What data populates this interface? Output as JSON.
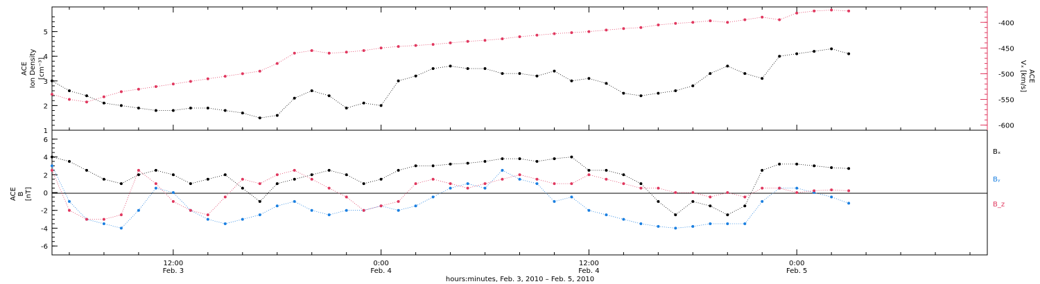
{
  "colors": {
    "density": "#000000",
    "vx": "#e0385f",
    "bx": "#000000",
    "by": "#1a7fe0",
    "bz": "#e0385f",
    "axis": "#000000"
  },
  "x_axis": {
    "title": "hours:minutes, Feb.  3, 2010 – Feb.  5, 2010",
    "tick_labels": [
      {
        "time": "12:00",
        "date": "Feb. 3",
        "hour": 12
      },
      {
        "time": "0:00",
        "date": "Feb. 4",
        "hour": 24
      },
      {
        "time": "12:00",
        "date": "Feb. 4",
        "hour": 36
      },
      {
        "time": "0:00",
        "date": "Feb. 5",
        "hour": 48
      }
    ]
  },
  "top_panel": {
    "left_label": [
      "ACE",
      "Ion Density",
      "[cm⁻³]"
    ],
    "right_label": [
      "ACE",
      "Vₓ [km/s]"
    ],
    "left_ticks": [
      "1",
      "2",
      "3",
      "4",
      "5"
    ],
    "right_ticks": [
      "-400",
      "-450",
      "-500",
      "-550",
      "-600"
    ]
  },
  "bottom_panel": {
    "left_label": [
      "ACE",
      "B",
      "[nT]"
    ],
    "left_ticks": [
      "6",
      "4",
      "2",
      "0",
      "-2",
      "-4",
      "-6"
    ],
    "legend": [
      "Bₓ",
      "Bᵧ",
      "B_z"
    ]
  },
  "chart_data": [
    {
      "type": "scatter",
      "panel": "top",
      "title": "",
      "x_unit": "hours from Feb. 3, 2010 0:00",
      "xlim": [
        5,
        59
      ],
      "y_left": {
        "label": "ACE Ion Density [cm⁻³]",
        "ylim": [
          1,
          6
        ]
      },
      "y_right": {
        "label": "ACE Vₓ [km/s]",
        "ylim": [
          -610,
          -370
        ]
      },
      "series": [
        {
          "name": "Ion Density",
          "axis": "left",
          "x": [
            5,
            6,
            7,
            8,
            9,
            10,
            11,
            12,
            13,
            14,
            15,
            16,
            17,
            18,
            19,
            20,
            21,
            22,
            23,
            24,
            25,
            26,
            27,
            28,
            29,
            30,
            31,
            32,
            33,
            34,
            35,
            36,
            37,
            38,
            39,
            40,
            41,
            42,
            43,
            44,
            45,
            46,
            47,
            48,
            49,
            50,
            51
          ],
          "y": [
            3.0,
            2.6,
            2.4,
            2.1,
            2.0,
            1.9,
            1.8,
            1.8,
            1.9,
            1.9,
            1.8,
            1.7,
            1.5,
            1.6,
            2.3,
            2.6,
            2.4,
            1.9,
            2.1,
            2.0,
            3.0,
            3.2,
            3.5,
            3.6,
            3.5,
            3.5,
            3.3,
            3.3,
            3.2,
            3.4,
            3.0,
            3.1,
            2.9,
            2.5,
            2.4,
            2.5,
            2.6,
            2.8,
            3.3,
            3.6,
            3.3,
            3.1,
            4.0,
            4.1,
            4.2,
            4.3,
            4.1
          ]
        },
        {
          "name": "Vx",
          "axis": "right",
          "x": [
            5,
            6,
            7,
            8,
            9,
            10,
            11,
            12,
            13,
            14,
            15,
            16,
            17,
            18,
            19,
            20,
            21,
            22,
            23,
            24,
            25,
            26,
            27,
            28,
            29,
            30,
            31,
            32,
            33,
            34,
            35,
            36,
            37,
            38,
            39,
            40,
            41,
            42,
            43,
            44,
            45,
            46,
            47,
            48,
            49,
            50,
            51
          ],
          "y": [
            -540,
            -550,
            -555,
            -545,
            -535,
            -530,
            -525,
            -520,
            -515,
            -510,
            -505,
            -500,
            -495,
            -480,
            -460,
            -455,
            -460,
            -458,
            -455,
            -450,
            -447,
            -445,
            -443,
            -440,
            -437,
            -435,
            -432,
            -428,
            -425,
            -422,
            -420,
            -418,
            -415,
            -412,
            -410,
            -405,
            -402,
            -400,
            -397,
            -400,
            -395,
            -390,
            -395,
            -382,
            -378,
            -376,
            -378
          ]
        }
      ]
    },
    {
      "type": "scatter",
      "panel": "bottom",
      "title": "",
      "x_unit": "hours from Feb. 3, 2010 0:00",
      "xlim": [
        5,
        59
      ],
      "y_left": {
        "label": "ACE B [nT]",
        "ylim": [
          -7,
          7
        ]
      },
      "series": [
        {
          "name": "Bₓ",
          "x": [
            5,
            6,
            7,
            8,
            9,
            10,
            11,
            12,
            13,
            14,
            15,
            16,
            17,
            18,
            19,
            20,
            21,
            22,
            23,
            24,
            25,
            26,
            27,
            28,
            29,
            30,
            31,
            32,
            33,
            34,
            35,
            36,
            37,
            38,
            39,
            40,
            41,
            42,
            43,
            44,
            45,
            46,
            47,
            48,
            49,
            50,
            51
          ],
          "y": [
            4.0,
            3.5,
            2.5,
            1.5,
            1.0,
            2.0,
            2.5,
            2.0,
            1.0,
            1.5,
            2.0,
            0.5,
            -1.0,
            1.0,
            1.5,
            2.0,
            2.5,
            2.0,
            1.0,
            1.5,
            2.5,
            3.0,
            3.0,
            3.2,
            3.3,
            3.5,
            3.8,
            3.8,
            3.5,
            3.8,
            4.0,
            2.5,
            2.5,
            2.0,
            1.0,
            -1.0,
            -2.5,
            -1.0,
            -1.5,
            -2.5,
            -1.5,
            2.5,
            3.2,
            3.2,
            3.0,
            2.8,
            2.7
          ]
        },
        {
          "name": "Bᵧ",
          "x": [
            5,
            6,
            7,
            8,
            9,
            10,
            11,
            12,
            13,
            14,
            15,
            16,
            17,
            18,
            19,
            20,
            21,
            22,
            23,
            24,
            25,
            26,
            27,
            28,
            29,
            30,
            31,
            32,
            33,
            34,
            35,
            36,
            37,
            38,
            39,
            40,
            41,
            42,
            43,
            44,
            45,
            46,
            47,
            48,
            49,
            50,
            51
          ],
          "y": [
            3.0,
            -1.0,
            -3.0,
            -3.5,
            -4.0,
            -2.0,
            0.5,
            0.0,
            -2.0,
            -3.0,
            -3.5,
            -3.0,
            -2.5,
            -1.5,
            -1.0,
            -2.0,
            -2.5,
            -2.0,
            -2.0,
            -1.5,
            -2.0,
            -1.5,
            -0.5,
            0.5,
            1.0,
            0.5,
            2.5,
            1.5,
            1.0,
            -1.0,
            -0.5,
            -2.0,
            -2.5,
            -3.0,
            -3.5,
            -3.8,
            -4.0,
            -3.8,
            -3.5,
            -3.5,
            -3.5,
            -1.0,
            0.5,
            0.5,
            0.0,
            -0.5,
            -1.2
          ]
        },
        {
          "name": "B_z",
          "x": [
            5,
            6,
            7,
            8,
            9,
            10,
            11,
            12,
            13,
            14,
            15,
            16,
            17,
            18,
            19,
            20,
            21,
            22,
            23,
            24,
            25,
            26,
            27,
            28,
            29,
            30,
            31,
            32,
            33,
            34,
            35,
            36,
            37,
            38,
            39,
            40,
            41,
            42,
            43,
            44,
            45,
            46,
            47,
            48,
            49,
            50,
            51
          ],
          "y": [
            2.5,
            -2.0,
            -3.0,
            -3.0,
            -2.5,
            2.5,
            1.0,
            -1.0,
            -2.0,
            -2.5,
            -0.5,
            1.5,
            1.0,
            2.0,
            2.5,
            1.5,
            0.5,
            -0.5,
            -2.0,
            -1.5,
            -1.0,
            1.0,
            1.5,
            1.0,
            0.5,
            1.0,
            1.5,
            2.0,
            1.5,
            1.0,
            1.0,
            2.0,
            1.5,
            1.0,
            0.5,
            0.5,
            0.0,
            0.0,
            -0.5,
            0.0,
            -0.5,
            0.5,
            0.5,
            0.0,
            0.2,
            0.3,
            0.2
          ]
        }
      ]
    }
  ]
}
